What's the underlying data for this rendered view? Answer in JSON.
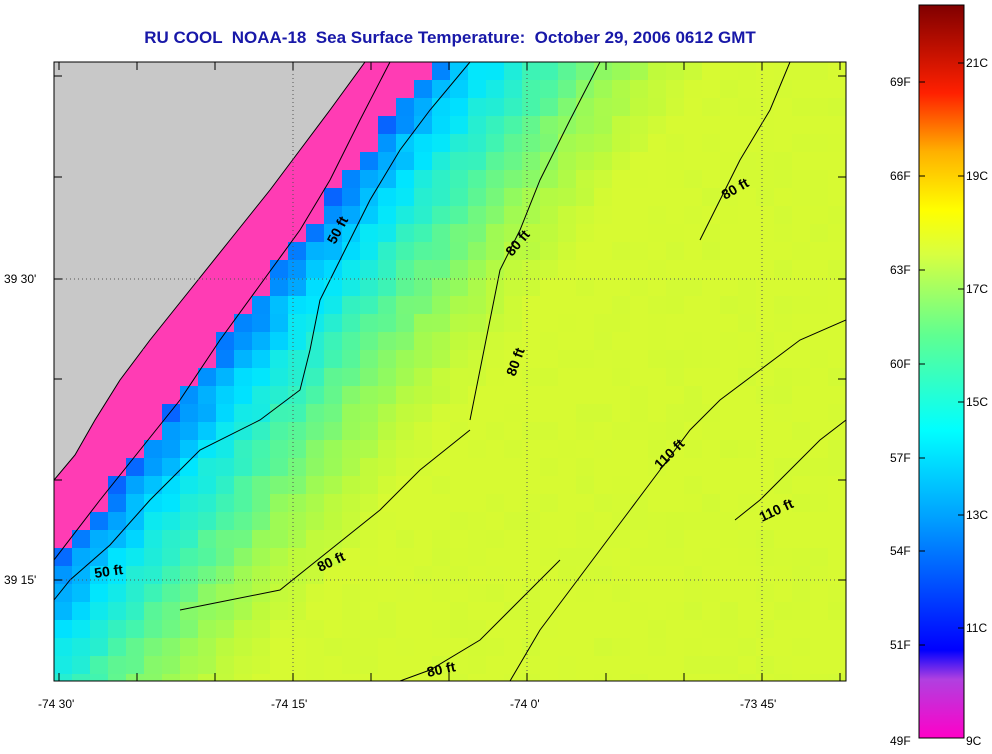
{
  "title": "RU COOL  NOAA-18  Sea Surface Temperature:  October 29, 2006 0612 GMT",
  "map": {
    "lat_labels": [
      "39 30'",
      "39 15'"
    ],
    "lon_labels": [
      "-74 30'",
      "-74 15'",
      "-74 0'",
      "-73 45'"
    ],
    "contour_labels": [
      "50 ft",
      "50 ft",
      "80 ft",
      "80 ft",
      "80 ft",
      "80 ft",
      "80 ft",
      "110 ft",
      "110 ft"
    ],
    "colors": {
      "land": "#c8c8c8",
      "cloud_mask": "#ff3cb4",
      "grid": "#555555"
    }
  },
  "colorbar": {
    "fahrenheit_labels": [
      "69F",
      "66F",
      "63F",
      "60F",
      "57F",
      "54F",
      "51F",
      "49F"
    ],
    "celsius_labels": [
      "21C",
      "19C",
      "17C",
      "15C",
      "13C",
      "11C",
      "9C"
    ]
  }
}
